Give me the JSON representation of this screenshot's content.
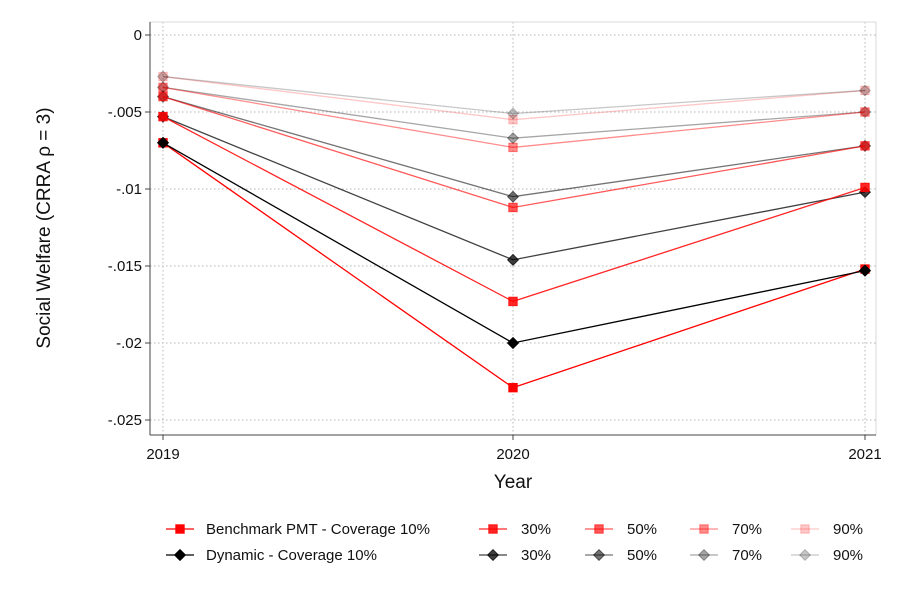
{
  "chart_data": {
    "type": "line",
    "xlabel": "Year",
    "ylabel": "Social Welfare (CRRA ρ = 3)",
    "x": [
      2019,
      2020,
      2021
    ],
    "xlim": [
      2019,
      2021
    ],
    "ylim": [
      -0.025,
      0
    ],
    "yticks": [
      0,
      -0.005,
      -0.01,
      -0.015,
      -0.02,
      -0.025
    ],
    "ytick_labels": [
      "0",
      "-.005",
      "-.01",
      "-.015",
      "-.02",
      "-.025"
    ],
    "xtick_labels": [
      "2019",
      "2020",
      "2021"
    ],
    "grid": true,
    "legend_position": "bottom",
    "series": [
      {
        "name": "Benchmark PMT - Coverage 10%",
        "marker": "square",
        "color": "#ff0000",
        "opacity": 1.0,
        "values": [
          -0.007,
          -0.0229,
          -0.0152
        ]
      },
      {
        "name": "30%",
        "marker": "square",
        "color": "#ff0000",
        "opacity": 0.85,
        "values": [
          -0.0053,
          -0.0173,
          -0.0099
        ]
      },
      {
        "name": "50%",
        "marker": "square",
        "color": "#ff0000",
        "opacity": 0.65,
        "values": [
          -0.004,
          -0.0112,
          -0.0072
        ]
      },
      {
        "name": "70%",
        "marker": "square",
        "color": "#ff0000",
        "opacity": 0.45,
        "values": [
          -0.0034,
          -0.0073,
          -0.005
        ]
      },
      {
        "name": "90%",
        "marker": "square",
        "color": "#ff0000",
        "opacity": 0.22,
        "values": [
          -0.0027,
          -0.0055,
          -0.0036
        ]
      },
      {
        "name": "Dynamic - Coverage 10%",
        "marker": "diamond",
        "color": "#000000",
        "opacity": 1.0,
        "values": [
          -0.007,
          -0.02,
          -0.0153
        ]
      },
      {
        "name": "30%",
        "marker": "diamond",
        "color": "#000000",
        "opacity": 0.75,
        "values": [
          -0.0053,
          -0.0146,
          -0.0102
        ]
      },
      {
        "name": "50%",
        "marker": "diamond",
        "color": "#000000",
        "opacity": 0.55,
        "values": [
          -0.004,
          -0.0105,
          -0.0072
        ]
      },
      {
        "name": "70%",
        "marker": "diamond",
        "color": "#000000",
        "opacity": 0.35,
        "values": [
          -0.0034,
          -0.0067,
          -0.005
        ]
      },
      {
        "name": "90%",
        "marker": "diamond",
        "color": "#000000",
        "opacity": 0.22,
        "values": [
          -0.0027,
          -0.0051,
          -0.0036
        ]
      }
    ]
  }
}
